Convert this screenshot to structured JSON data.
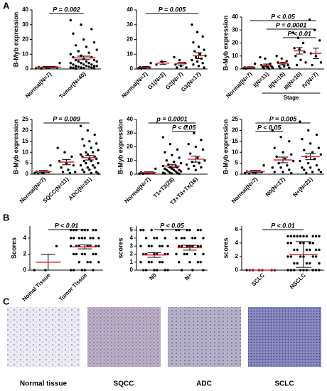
{
  "panels": [
    "A",
    "B",
    "C"
  ],
  "chart_data": [
    {
      "type": "dot",
      "ylabel": "B-Myb expression",
      "ylim": [
        0,
        40
      ],
      "yticks": [
        0,
        10,
        20,
        30,
        40
      ],
      "groups": [
        {
          "name": "Normal(N=7)",
          "values": [
            0.5,
            0.8,
            1,
            1.2,
            0.6,
            4,
            0.3
          ],
          "mean": 1.2,
          "err": 0.5
        },
        {
          "name": "Tumor(N=40)",
          "values": [
            33,
            30,
            27,
            24,
            20,
            18,
            16,
            15,
            13,
            12,
            11,
            10,
            9,
            8,
            8,
            7,
            6,
            6,
            5,
            5,
            5,
            4,
            4,
            4,
            3,
            3,
            3,
            2,
            2,
            2,
            2,
            1.5,
            1.5,
            1,
            1,
            1,
            0.8,
            0.6,
            0.5,
            0.3
          ],
          "mean": 7.5,
          "err": 1.2
        }
      ],
      "comparisons": [
        {
          "label": "P = 0.002",
          "from": 0,
          "to": 1
        }
      ]
    },
    {
      "type": "dot",
      "ylim": [
        0,
        40
      ],
      "yticks": [
        0,
        10,
        20,
        30,
        40
      ],
      "groups": [
        {
          "name": "Normal(N=7)",
          "values": [
            0.5,
            0.8,
            1,
            1.2,
            0.6,
            4,
            0.3
          ],
          "mean": 1.2,
          "err": 0.5
        },
        {
          "name": "G1(N=2)",
          "values": [
            3,
            5
          ],
          "mean": 4,
          "err": 1
        },
        {
          "name": "G2(N=7)",
          "values": [
            8,
            6,
            4,
            3,
            2,
            1,
            1
          ],
          "mean": 3.6,
          "err": 1
        },
        {
          "name": "G3(N=17)",
          "values": [
            30,
            25,
            22,
            18,
            15,
            13,
            12,
            10,
            9,
            8,
            7,
            6,
            5,
            4,
            3,
            2,
            1
          ],
          "mean": 9,
          "err": 2
        }
      ],
      "comparisons": [
        {
          "label": "P = 0.005",
          "from": 0,
          "to": 3
        }
      ]
    },
    {
      "type": "dot",
      "ylabel": "B-Myb expression",
      "ylim": [
        0,
        40
      ],
      "yticks": [
        0,
        10,
        20,
        30,
        40
      ],
      "groups": [
        {
          "name": "Normal(N=7)",
          "values": [
            0.5,
            0.8,
            1,
            1.2,
            0.6,
            4,
            0.3
          ],
          "mean": 1.2,
          "err": 0.5
        },
        {
          "name": "I(N=11)",
          "values": [
            9,
            8,
            4,
            3,
            2,
            2,
            1.5,
            1,
            1,
            0.5,
            0.3
          ],
          "mean": 2.9,
          "err": 0.9
        },
        {
          "name": "II(N=10)",
          "values": [
            10,
            8,
            6,
            5,
            4,
            3,
            2,
            2,
            1,
            0.5
          ],
          "mean": 4.2,
          "err": 1
        },
        {
          "name": "III(N=10)",
          "values": [
            28,
            24,
            20,
            16,
            15,
            13,
            10,
            7,
            5,
            3
          ],
          "mean": 14,
          "err": 2.5
        },
        {
          "name": "IV(N=7)",
          "values": [
            38,
            30,
            22,
            12,
            10,
            5,
            3
          ],
          "mean": 12,
          "err": 4
        }
      ],
      "comparisons": [
        {
          "label": "P < 0.05",
          "from": 0,
          "to": 4
        },
        {
          "label": "P = 0.0001",
          "from": 1,
          "to": 4
        },
        {
          "label": "P < 0.01",
          "from": 2,
          "to": 4
        }
      ],
      "group_label": {
        "text": "Stage",
        "from": 1,
        "to": 4
      }
    },
    {
      "type": "dot",
      "ylabel": "B-Myb expression",
      "ylim": [
        0,
        25
      ],
      "yticks": [
        0,
        5,
        10,
        15,
        20,
        25
      ],
      "groups": [
        {
          "name": "Normal(N=7)",
          "values": [
            0.5,
            0.8,
            1,
            1.2,
            0.6,
            4,
            0.3
          ],
          "mean": 1.2,
          "err": 0.5
        },
        {
          "name": "SQCC(N=11)",
          "values": [
            12,
            10,
            8,
            6,
            5,
            4,
            3,
            2,
            1,
            1,
            0.5
          ],
          "mean": 5.5,
          "err": 1.2
        },
        {
          "name": "ADC(N=31)",
          "values": [
            22,
            20,
            18,
            16,
            15,
            14,
            13,
            12,
            11,
            10,
            10,
            9,
            9,
            8,
            8,
            7,
            7,
            6,
            6,
            5,
            5,
            4,
            4,
            3,
            3,
            2,
            2,
            1,
            1,
            0.5,
            0.3
          ],
          "mean": 7.5,
          "err": 1
        }
      ],
      "comparisons": [
        {
          "label": "P = 0.009",
          "from": 0,
          "to": 2
        }
      ]
    },
    {
      "type": "dot",
      "ylabel": "B-Myb expression",
      "ylim": [
        0,
        40
      ],
      "yticks": [
        0,
        10,
        20,
        30,
        40
      ],
      "groups": [
        {
          "name": "Normal(N=7)",
          "values": [
            0.5,
            0.8,
            1,
            1.2,
            0.6,
            4,
            0.3
          ],
          "mean": 1.2,
          "err": 0.5
        },
        {
          "name": "T1+T2(28)",
          "values": [
            27,
            22,
            18,
            16,
            14,
            12,
            10,
            9,
            8,
            7,
            6,
            6,
            5,
            5,
            4,
            4,
            3,
            3,
            3,
            2,
            2,
            2,
            1,
            1,
            1,
            0.5,
            0.5,
            0.3
          ],
          "mean": 6,
          "err": 1.2
        },
        {
          "name": "T3+T4+Tx(16)",
          "values": [
            35,
            30,
            25,
            22,
            20,
            18,
            15,
            12,
            10,
            9,
            8,
            7,
            6,
            5,
            4,
            3
          ],
          "mean": 11,
          "err": 2.2
        }
      ],
      "comparisons": [
        {
          "label": "p = 0.0001",
          "from": 0,
          "to": 2
        },
        {
          "label": "P < 0.05",
          "from": 1,
          "to": 2
        }
      ]
    },
    {
      "type": "dot",
      "ylabel": "B-Myb expression",
      "ylim": [
        0,
        25
      ],
      "yticks": [
        0,
        5,
        10,
        15,
        20,
        25
      ],
      "groups": [
        {
          "name": "Normal(N=7)",
          "values": [
            0.5,
            0.8,
            1,
            1.2,
            0.6,
            4,
            0.3
          ],
          "mean": 1.2,
          "err": 0.5
        },
        {
          "name": "N0(N=17)",
          "values": [
            20,
            17,
            15,
            12,
            10,
            9,
            8,
            7,
            6,
            5,
            4,
            3,
            3,
            2,
            1,
            1,
            0.5
          ],
          "mean": 6.5,
          "err": 1.3
        },
        {
          "name": "N+(N=21)",
          "values": [
            24,
            20,
            18,
            16,
            14,
            12,
            11,
            10,
            9,
            8,
            7,
            6,
            5,
            4,
            3,
            3,
            2,
            2,
            1,
            1,
            0.5
          ],
          "mean": 8,
          "err": 1.4
        }
      ],
      "comparisons": [
        {
          "label": "P = 0.005",
          "from": 0,
          "to": 2
        },
        {
          "label": "P < 0.05",
          "from": 0,
          "to": 1
        }
      ]
    },
    {
      "type": "dot",
      "ylabel": "Scores",
      "ylim": [
        0,
        5.5
      ],
      "yticks": [
        0,
        2,
        4
      ],
      "groups": [
        {
          "name": "Nomal Tissue",
          "values": [
            0,
            0,
            3
          ],
          "mean": 1,
          "err": 1
        },
        {
          "name": "Tumor Tissue",
          "values": [
            5,
            5,
            5,
            5,
            5,
            5,
            5,
            5,
            4,
            4,
            4,
            4,
            4,
            4,
            4,
            4,
            3,
            3,
            3,
            3,
            3,
            3,
            3,
            2,
            2,
            2,
            2,
            2,
            2,
            1,
            1,
            1,
            1,
            0,
            0,
            0,
            0,
            0
          ],
          "mean": 2.9,
          "err": 0.25
        }
      ],
      "comparisons": [
        {
          "label": "P < 0.01",
          "from": 0,
          "to": 1
        }
      ]
    },
    {
      "type": "dot",
      "ylabel": "scores",
      "ylim": [
        0,
        5.5
      ],
      "yticks": [
        0,
        1,
        2,
        3,
        4,
        5
      ],
      "groups": [
        {
          "name": "N0",
          "values": [
            5,
            5,
            5,
            5,
            4,
            4,
            4,
            4,
            3,
            3,
            3,
            3,
            3,
            3,
            2,
            2,
            2,
            2,
            2,
            2,
            1,
            1,
            1,
            1,
            1,
            0,
            0,
            0,
            0,
            0,
            0
          ],
          "mean": 1.9,
          "err": 0.3
        },
        {
          "name": "N+",
          "values": [
            5,
            5,
            5,
            5,
            5,
            5,
            4,
            4,
            4,
            4,
            4,
            4,
            3,
            3,
            3,
            3,
            3,
            3,
            3,
            2,
            2,
            2,
            2,
            2,
            1,
            1,
            1,
            1,
            0,
            0,
            0
          ],
          "mean": 2.8,
          "err": 0.3
        }
      ],
      "comparisons": [
        {
          "label": "P < 0.05",
          "from": 0,
          "to": 1
        }
      ]
    },
    {
      "type": "dot",
      "ylabel": "scores",
      "ylim": [
        0,
        6.5
      ],
      "yticks": [
        0,
        2,
        4,
        6
      ],
      "groups": [
        {
          "name": "SCLC",
          "values": [
            0,
            0,
            0,
            0,
            0,
            0,
            0
          ],
          "mean": 0,
          "err": 0
        },
        {
          "name": "NSCLC",
          "values": [
            5,
            5,
            5,
            5,
            5,
            5,
            5,
            5,
            5,
            5,
            4,
            4,
            4,
            4,
            4,
            4,
            3,
            3,
            3,
            3,
            3,
            3,
            2,
            2,
            2,
            2,
            2,
            2,
            1,
            1,
            1,
            1,
            1,
            0,
            0,
            0,
            0,
            0,
            0,
            0,
            0,
            0
          ],
          "mean": 2.3,
          "err": 1.9
        }
      ],
      "comparisons": [
        {
          "label": "P < 0.01",
          "from": 0,
          "to": 1
        }
      ]
    }
  ],
  "images": [
    "Normal tissue",
    "SQCC",
    "ADC",
    "SCLC"
  ]
}
